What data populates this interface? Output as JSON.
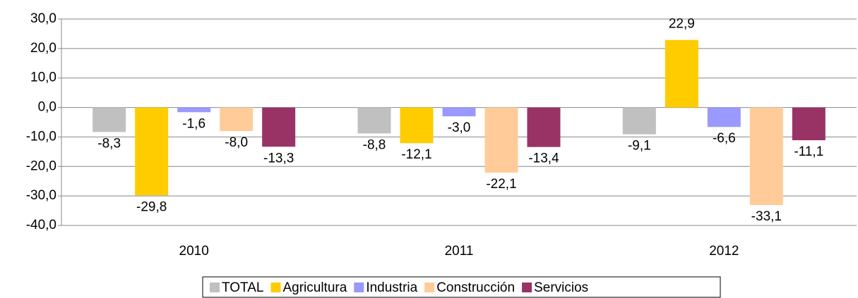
{
  "chart_data": {
    "type": "bar",
    "categories": [
      "2010",
      "2011",
      "2012"
    ],
    "series": [
      {
        "name": "TOTAL",
        "color": "#c0c0c0",
        "values": [
          -8.3,
          -8.8,
          -9.1
        ],
        "value_labels": [
          "-8,3",
          "-8,8",
          "-9,1"
        ]
      },
      {
        "name": "Agricultura",
        "color": "#ffcc00",
        "values": [
          -29.8,
          -12.1,
          22.9
        ],
        "value_labels": [
          "-29,8",
          "-12,1",
          "22,9"
        ]
      },
      {
        "name": "Industria",
        "color": "#9999ff",
        "values": [
          -1.6,
          -3.0,
          -6.6
        ],
        "value_labels": [
          "-1,6",
          "-3,0",
          "-6,6"
        ]
      },
      {
        "name": "Construcción",
        "color": "#ffcc99",
        "values": [
          -8.0,
          -22.1,
          -33.1
        ],
        "value_labels": [
          "-8,0",
          "-22,1",
          "-33,1"
        ]
      },
      {
        "name": "Servicios",
        "color": "#993366",
        "values": [
          -13.3,
          -13.4,
          -11.1
        ],
        "value_labels": [
          "-13,3",
          "-13,4",
          "-11,1"
        ]
      }
    ],
    "ylim": [
      -40,
      30
    ],
    "yticks": [
      {
        "value": -40,
        "label": "-40,0"
      },
      {
        "value": -30,
        "label": "-30,0"
      },
      {
        "value": -20,
        "label": "-20,0"
      },
      {
        "value": -10,
        "label": "-10,0"
      },
      {
        "value": 0,
        "label": "0,0"
      },
      {
        "value": 10,
        "label": "10,0"
      },
      {
        "value": 20,
        "label": "20,0"
      },
      {
        "value": 30,
        "label": "30,0"
      }
    ],
    "grid": true,
    "legend": "bottom"
  }
}
